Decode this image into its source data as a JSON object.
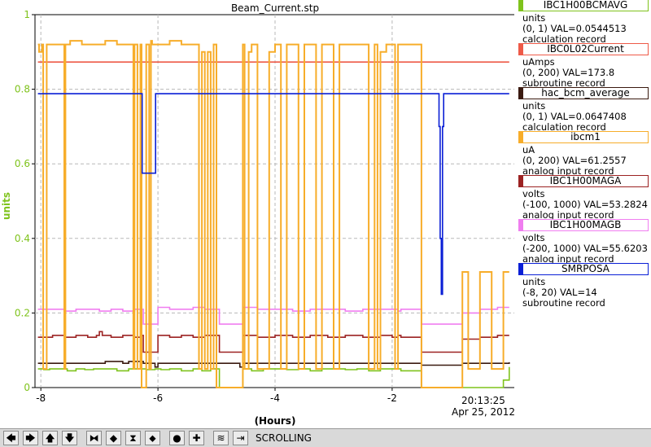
{
  "chart_data": {
    "type": "line",
    "title": "Beam_Current.stp",
    "xlabel": "(Hours)",
    "ylabel": "units",
    "xlim": [
      -8.1,
      0.1
    ],
    "ylim": [
      0,
      1
    ],
    "x_ticks": [
      -8,
      -6,
      -4,
      -2
    ],
    "x_tick_labels": [
      "-8",
      "-6",
      "-4",
      "-2"
    ],
    "y_ticks": [
      0,
      0.2,
      0.4,
      0.6,
      0.8,
      1
    ],
    "y_tick_labels": [
      "0",
      "0.2",
      "0.4",
      "0.6",
      "0.8",
      "1"
    ],
    "time_label": "20:13:25",
    "date_label": "Apr 25, 2012",
    "grid": true,
    "legend_position": "right",
    "series": [
      {
        "name": "IBC1H00BCMAVG",
        "units": "units",
        "info": "(0, 1) VAL=0.0544513",
        "record": "calculation record",
        "color": "#7fc31c",
        "x": [
          -8.05,
          -7.95,
          -7.85,
          -7.7,
          -7.55,
          -7.4,
          -7.25,
          -7.1,
          -7.0,
          -6.9,
          -6.7,
          -6.5,
          -6.35,
          -6.2,
          -6.05,
          -5.95,
          -5.8,
          -5.6,
          -5.4,
          -5.25,
          -5.1,
          -4.95,
          -4.6,
          -4.55,
          -4.4,
          -4.2,
          -4.0,
          -3.8,
          -3.6,
          -3.4,
          -3.2,
          -3.0,
          -2.8,
          -2.6,
          -2.4,
          -2.2,
          -2.0,
          -1.85,
          -1.7,
          -1.5,
          -1.3,
          -1.1,
          -0.9,
          -0.7,
          -0.5,
          -0.3,
          -0.1,
          0.0
        ],
        "y": [
          0.05,
          0.048,
          0.05,
          0.05,
          0.045,
          0.05,
          0.048,
          0.05,
          0.05,
          0.05,
          0.045,
          0.05,
          0.05,
          0.048,
          0.05,
          0.048,
          0.05,
          0.045,
          0.05,
          0.045,
          0.05,
          0.0,
          0.0,
          0.05,
          0.045,
          0.05,
          0.05,
          0.048,
          0.05,
          0.045,
          0.05,
          0.05,
          0.048,
          0.05,
          0.045,
          0.05,
          0.05,
          0.045,
          0.045,
          0.0,
          0.0,
          0.0,
          0.0,
          0.0,
          0.0,
          0.0,
          0.02,
          0.055
        ]
      },
      {
        "name": "IBC0L02Current",
        "units": "uAmps",
        "info": "(0, 200) VAL=173.8",
        "record": "subroutine record",
        "color": "#ee5a48",
        "x": [
          -8.05,
          0.0
        ],
        "y": [
          0.873,
          0.873
        ]
      },
      {
        "name": "hac_bcm_average",
        "units": "units",
        "info": "(0, 1) VAL=0.0647408",
        "record": "calculation record",
        "color": "#3a1a10",
        "x": [
          -8.05,
          -7.0,
          -6.9,
          -6.6,
          -6.5,
          -6.25,
          -6.05,
          -6.0,
          -4.95,
          -4.6,
          -4.55,
          -1.5,
          -0.9,
          -0.8,
          0.0
        ],
        "y": [
          0.065,
          0.065,
          0.07,
          0.065,
          0.07,
          0.065,
          0.055,
          0.065,
          0.065,
          0.055,
          0.065,
          0.06,
          0.06,
          0.065,
          0.068
        ]
      },
      {
        "name": "ibcm1",
        "units": "uA",
        "info": "(0, 200) VAL=61.2557",
        "record": "analog input record",
        "color": "#f7ad2a",
        "x": [
          -8.05,
          -8.03,
          -7.98,
          -7.96,
          -7.9,
          -7.8,
          -7.7,
          -7.62,
          -7.6,
          -7.58,
          -7.5,
          -7.3,
          -7.1,
          -6.9,
          -6.7,
          -6.5,
          -6.42,
          -6.4,
          -6.35,
          -6.3,
          -6.28,
          -6.2,
          -6.15,
          -6.12,
          -6.1,
          -6.0,
          -5.8,
          -5.6,
          -5.4,
          -5.3,
          -5.25,
          -5.2,
          -5.15,
          -5.1,
          -5.05,
          -5.0,
          -4.95,
          -4.6,
          -4.55,
          -4.52,
          -4.45,
          -4.4,
          -4.3,
          -4.1,
          -4.0,
          -3.9,
          -3.8,
          -3.7,
          -3.6,
          -3.5,
          -3.4,
          -3.3,
          -3.2,
          -3.1,
          -3.0,
          -2.9,
          -2.8,
          -2.6,
          -2.4,
          -2.3,
          -2.25,
          -2.2,
          -2.1,
          -2.0,
          -1.95,
          -1.9,
          -1.85,
          -1.7,
          -1.5,
          -1.45,
          -1.4,
          -1.35,
          -1.3,
          -1.2,
          -1.1,
          -1.0,
          -0.9,
          -0.8,
          -0.7,
          -0.5,
          -0.3,
          -0.1,
          0.0
        ],
        "y": [
          0.92,
          0.9,
          0.92,
          0.05,
          0.92,
          0.92,
          0.92,
          0.92,
          0.05,
          0.92,
          0.93,
          0.92,
          0.92,
          0.93,
          0.92,
          0.92,
          0.05,
          0.92,
          0.05,
          0.92,
          0.0,
          0.92,
          0.05,
          0.93,
          0.92,
          0.92,
          0.93,
          0.92,
          0.92,
          0.05,
          0.9,
          0.05,
          0.9,
          0.05,
          0.92,
          0.0,
          0.0,
          0.0,
          0.92,
          0.05,
          0.9,
          0.92,
          0.05,
          0.9,
          0.92,
          0.05,
          0.92,
          0.92,
          0.05,
          0.92,
          0.92,
          0.05,
          0.92,
          0.92,
          0.05,
          0.92,
          0.92,
          0.92,
          0.05,
          0.92,
          0.05,
          0.9,
          0.92,
          0.92,
          0.05,
          0.92,
          0.92,
          0.92,
          0.0,
          0.0,
          0.0,
          0.0,
          0.0,
          0.0,
          0.0,
          0.0,
          0.0,
          0.31,
          0.05,
          0.31,
          0.05,
          0.31,
          0.31
        ]
      },
      {
        "name": "IBC1H00MAGA",
        "units": "volts",
        "info": "(-100, 1000) VAL=53.2824",
        "record": "analog input record",
        "color": "#9c2222",
        "x": [
          -8.05,
          -7.8,
          -7.6,
          -7.4,
          -7.2,
          -7.05,
          -7.0,
          -6.95,
          -6.8,
          -6.6,
          -6.4,
          -6.28,
          -6.25,
          -6.05,
          -6.0,
          -5.8,
          -5.6,
          -5.4,
          -5.2,
          -4.95,
          -4.6,
          -4.55,
          -4.3,
          -4.0,
          -3.7,
          -3.4,
          -3.1,
          -2.8,
          -2.5,
          -2.2,
          -2.0,
          -1.9,
          -1.85,
          -1.5,
          -1.3,
          -1.1,
          -0.9,
          -0.8,
          -0.5,
          -0.2,
          0.0
        ],
        "y": [
          0.135,
          0.14,
          0.135,
          0.14,
          0.135,
          0.14,
          0.15,
          0.14,
          0.135,
          0.14,
          0.135,
          0.14,
          0.095,
          0.095,
          0.14,
          0.135,
          0.14,
          0.135,
          0.14,
          0.095,
          0.095,
          0.14,
          0.135,
          0.14,
          0.135,
          0.14,
          0.135,
          0.14,
          0.135,
          0.14,
          0.135,
          0.14,
          0.135,
          0.095,
          0.095,
          0.095,
          0.095,
          0.13,
          0.135,
          0.14,
          0.14
        ]
      },
      {
        "name": "IBC1H00MAGB",
        "units": "volts",
        "info": "(-200, 1000) VAL=55.6203",
        "record": "analog input record",
        "color": "#f07ef0",
        "x": [
          -8.05,
          -7.8,
          -7.6,
          -7.4,
          -7.2,
          -7.0,
          -6.8,
          -6.6,
          -6.4,
          -6.28,
          -6.25,
          -6.05,
          -6.0,
          -5.8,
          -5.6,
          -5.4,
          -5.2,
          -4.95,
          -4.6,
          -4.55,
          -4.3,
          -4.0,
          -3.7,
          -3.4,
          -3.1,
          -2.8,
          -2.5,
          -2.2,
          -2.0,
          -1.9,
          -1.85,
          -1.5,
          -1.3,
          -1.1,
          -0.9,
          -0.8,
          -0.5,
          -0.2,
          0.0
        ],
        "y": [
          0.21,
          0.21,
          0.205,
          0.21,
          0.21,
          0.205,
          0.21,
          0.205,
          0.21,
          0.21,
          0.17,
          0.17,
          0.215,
          0.21,
          0.21,
          0.215,
          0.21,
          0.17,
          0.17,
          0.215,
          0.21,
          0.21,
          0.205,
          0.21,
          0.21,
          0.205,
          0.21,
          0.21,
          0.21,
          0.205,
          0.21,
          0.17,
          0.17,
          0.17,
          0.17,
          0.2,
          0.21,
          0.215,
          0.215
        ]
      },
      {
        "name": "SMRPOSA",
        "units": "units",
        "info": "(-8, 20) VAL=14",
        "record": "subroutine record",
        "color": "#0a1fd6",
        "x": [
          -8.05,
          -6.28,
          -6.27,
          -6.05,
          -6.04,
          -1.22,
          -1.2,
          -1.18,
          -1.16,
          -1.14,
          -1.12,
          0.0
        ],
        "y": [
          0.788,
          0.788,
          0.575,
          0.575,
          0.788,
          0.788,
          0.7,
          0.4,
          0.25,
          0.7,
          0.788,
          0.788
        ]
      }
    ]
  },
  "toolbar": {
    "buttons": [
      {
        "name": "pan-left-icon",
        "glyph": "🡄"
      },
      {
        "name": "pan-right-icon",
        "glyph": "🡆"
      },
      {
        "name": "pan-up-icon",
        "glyph": "🡅"
      },
      {
        "name": "pan-down-icon",
        "glyph": "🡇"
      },
      {
        "name": "zoom-in-x-icon",
        "glyph": "⧓"
      },
      {
        "name": "zoom-out-x-icon",
        "glyph": "◆"
      },
      {
        "name": "zoom-in-y-icon",
        "glyph": "⧗"
      },
      {
        "name": "zoom-out-y-icon",
        "glyph": "⬥"
      },
      {
        "name": "zoom-reset-icon",
        "glyph": "●"
      },
      {
        "name": "add-pv-icon",
        "glyph": "✚"
      },
      {
        "name": "autoscale-icon",
        "glyph": "≋"
      },
      {
        "name": "scrolling-icon",
        "glyph": "⇥"
      }
    ],
    "status": "SCROLLING"
  }
}
